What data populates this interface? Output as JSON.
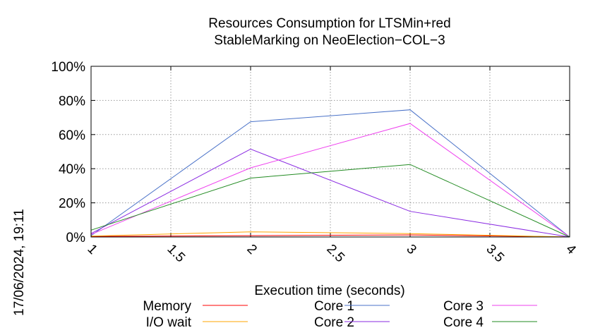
{
  "timestamp": "17/06/2024, 19:11",
  "chart_data": {
    "type": "line",
    "title": [
      "Resources Consumption for LTSMin+red",
      "StableMarking on NeoElection−COL−3"
    ],
    "xlabel": "Execution time (seconds)",
    "ylabel": "",
    "xlim": [
      1,
      4
    ],
    "ylim": [
      0,
      100
    ],
    "x_ticks": [
      1,
      1.5,
      2,
      2.5,
      3,
      3.5,
      4
    ],
    "x_tick_labels": [
      "1",
      "1.5",
      "2",
      "2.5",
      "3",
      "3.5",
      "4"
    ],
    "y_ticks": [
      0,
      20,
      40,
      60,
      80,
      100
    ],
    "y_tick_labels": [
      "0%",
      "20%",
      "40%",
      "60%",
      "80%",
      "100%"
    ],
    "grid": true,
    "legend_placement": "bottom",
    "x": [
      1,
      2,
      3,
      4
    ],
    "series": [
      {
        "name": "Memory",
        "color": "#ff0000",
        "values": [
          0.3,
          0.8,
          1.2,
          0
        ]
      },
      {
        "name": "I/O wait",
        "color": "#ffa500",
        "values": [
          0.5,
          3.0,
          2.0,
          0
        ]
      },
      {
        "name": "Core 1",
        "color": "#4a72c8",
        "values": [
          0.8,
          67.5,
          74.5,
          0
        ]
      },
      {
        "name": "Core 2",
        "color": "#8a2be2",
        "values": [
          2.0,
          51.5,
          15.0,
          0
        ]
      },
      {
        "name": "Core 3",
        "color": "#ee40ee",
        "values": [
          1.5,
          40.5,
          66.5,
          0
        ]
      },
      {
        "name": "Core 4",
        "color": "#228b22",
        "values": [
          4.0,
          34.5,
          42.5,
          0
        ]
      }
    ]
  }
}
